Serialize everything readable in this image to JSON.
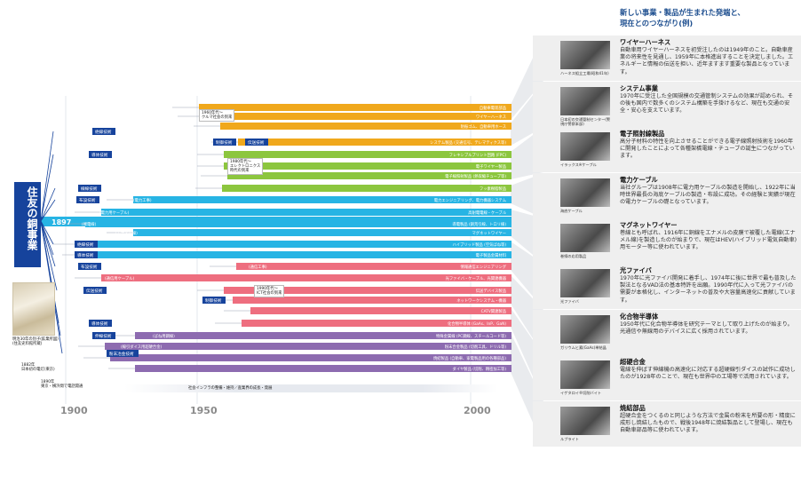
{
  "header": {
    "line1": "新しい事業・製品が生まれた発端と、",
    "line2": "現在とのつながり(例)"
  },
  "title": "住友の銅事業",
  "start_year": "1897",
  "axis": {
    "y1900": "1900",
    "y1950": "1950",
    "y2000": "2000"
  },
  "colors": {
    "orange": "#f0a81c",
    "green": "#8cc63e",
    "cyan": "#27b4e4",
    "pink": "#ee6e7f",
    "purple": "#8d6bb0",
    "navy": "#16439c"
  },
  "branches": [
    {
      "id": "zetsuen1",
      "label": "絶縁技術"
    },
    {
      "id": "seigyo1",
      "label": "制御技術"
    },
    {
      "id": "denso1",
      "label": "伝送技術"
    },
    {
      "id": "doutai1",
      "label": "導体技術"
    },
    {
      "id": "sensen",
      "label": "線線技術"
    },
    {
      "id": "fusetsu1",
      "label": "布設技術"
    },
    {
      "id": "zetsuen2",
      "label": "絶縁技術"
    },
    {
      "id": "doutai2",
      "label": "導体技術"
    },
    {
      "id": "fusetsu2",
      "label": "布設技術"
    },
    {
      "id": "denso2",
      "label": "伝送技術"
    },
    {
      "id": "seigyo2",
      "label": "制御技術"
    },
    {
      "id": "doutai3",
      "label": "導体技術"
    },
    {
      "id": "shinsen",
      "label": "伸線技術"
    },
    {
      "id": "funmatsu",
      "label": "粉末冶金技術"
    }
  ],
  "bars": [
    {
      "label": "自動車電装部品"
    },
    {
      "label": "ワイヤーハーネス"
    },
    {
      "label": "防振ゴム、自動車用ホース"
    },
    {
      "label": "システム製品 (交通信号、テレマティクス等)"
    },
    {
      "label": "フレキシブルプリント回路 (FPC)"
    },
    {
      "label": "電子ワイヤー製品"
    },
    {
      "label": "電子線照射製品 (熱収縮チューブ等)"
    },
    {
      "label": "フッ素樹脂製品"
    },
    {
      "label": "電力エンジニアリング、電力機器システム"
    },
    {
      "label": "高耐電電線・ケーブル"
    },
    {
      "label": "導電製品 (銅荒引線、トロリ線)"
    },
    {
      "label": "マグネットワイヤー"
    },
    {
      "label": "ハイブリッド製品 (空気ばね等)"
    },
    {
      "label": "電子製品金属材料"
    },
    {
      "label": "情報通信エンジニアリング"
    },
    {
      "label": "光ファイバ・ケーブル、光関連機器"
    },
    {
      "label": "伝送デバイス製品"
    },
    {
      "label": "ネットワークシステム・機器"
    },
    {
      "label": "CATV関連製品"
    },
    {
      "label": "化合物半導体 (GaAs、InP、GaN)"
    },
    {
      "label": "特殊金属線 (PC鋼線、スチールコード等)"
    },
    {
      "label": "粉末合金製品 (切削工具、ドリル等)"
    },
    {
      "label": "焼結製品 (自動車、家電製品用の各種部品)"
    },
    {
      "label": "ダイヤ製品 (切削、精密加工等)"
    }
  ],
  "markers": [
    {
      "label": "(電力工事)"
    },
    {
      "label": "(電力用ケーブル)"
    },
    {
      "label": "(裸電線)"
    },
    {
      "label": "(エナメル線)"
    },
    {
      "label": "(通信工事)"
    },
    {
      "label": "(通信用ケーブル)"
    },
    {
      "label": "(ばね用鋼線)"
    },
    {
      "label": "(線引ダイス用超硬合金)"
    }
  ],
  "notes": {
    "n1960a": "1960年代〜",
    "n1960b": "クルマ社会の到来",
    "n1980a": "1980年代〜",
    "n1980b": "エレクトロニクス",
    "n1980c": "時代の到来",
    "n1990a": "1990年代〜",
    "n1990b": "ICT社会の到来",
    "infra": "社会インフラの整備・維持／産業界の成長・発展"
  },
  "history": [
    {
      "line1": "1882年",
      "line2": "日本初の電灯(東京)"
    },
    {
      "line1": "1890年",
      "line2": "東京・横浜間で電話開通"
    }
  ],
  "caption_old": {
    "line1": "明治30年の別子(鉱業所図)",
    "line2": "(住友史料館所蔵)"
  },
  "panels": [
    {
      "title": "ワイヤーハーネス",
      "body": "自動車用ワイヤーハーネスを初受注したのは1949年のこと。自動車産業の将来性を見通し、1959年に本格進出することを決定しました。エネルギーと情報の伝送を担い、近年ますます重要な製品となっています。",
      "caption": "ハーネス組立工場(昭和41年)"
    },
    {
      "title": "システム事業",
      "body": "1970年に受注した全国規模の交通管制システムの効果が認められ、その後も国内で数多くのシステム構築を手掛けるなど、現在も交通の安全・安心を支えています。",
      "caption": "日本初の交通管制センター(警視庁警察本部)"
    },
    {
      "title": "電子照射線製品",
      "body": "高分子材料の特性を向上させることができる電子線照射技術を1960年に開発したことによって各種架橋電線・チューブの誕生につながっています。",
      "caption": "イラックス※ケーブル"
    },
    {
      "title": "電力ケーブル",
      "body": "当社グループは1908年に電力用ケーブルの製造を開始し、1922年に当時世界最長の海底ケーブルの製造・布設に成功。その経験と実績が現在の電力ケーブルの礎となっています。",
      "caption": "海底ケーブル"
    },
    {
      "title": "マグネットワイヤー",
      "body": "巻線とも呼ばれ、1916年に銅線をエナメルの皮膜で被覆した電線(エナメル線)を製造したのが始まりで、現在はHEV(ハイブリッド電気自動車)用モーター等に使われています。",
      "caption": "巻線の応用製品"
    },
    {
      "title": "光ファイバ",
      "body": "1970年に光ファイバ開発に着手し、1974年に後に世界で最も普及した製法となるVAD法の基本特許を出願。1990年代に入って光ファイバの需要が本格化し、インターネットの普及や大容量高速化に貢献しています。",
      "caption": "光ファイバ"
    },
    {
      "title": "化合物半導体",
      "body": "1950年代に化合物半導体を研究テーマとして取り上げたのが始まり。光通信や無線用のデバイスに広く採用されています。",
      "caption": "ガリウムヒ素(GaAs)単結晶"
    },
    {
      "title": "超硬合金",
      "body": "電線を伸ばす伸線機の高速化に対応する超硬線引ダイスの試作に成功したのが1928年のことで、現在も世界中の工場等で活用されています。",
      "caption": "イゲタロイ®切削バイト"
    },
    {
      "title": "焼結部品",
      "body": "超硬合金をつくるのと同じような方法で金属の粉末を所要の形・精度に成形し焼結したもので、戦後1948年に焼結製品として登場し、現在も自動車部品等に使われています。",
      "caption": "ルブライト"
    }
  ]
}
